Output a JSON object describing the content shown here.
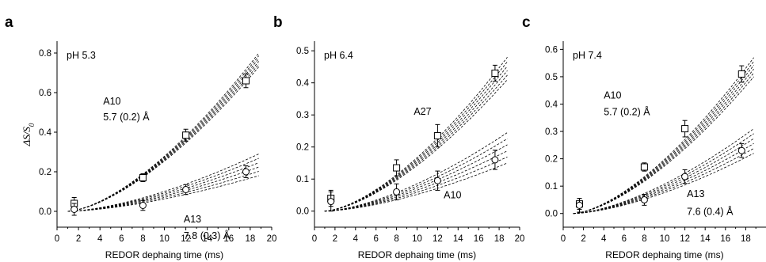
{
  "figure": {
    "ylabel_html": "ΔS/S0",
    "ylabel_main": "ΔS/",
    "ylabel_S": "S",
    "ylabel_sub": "0"
  },
  "chart_data": [
    {
      "type": "scatter",
      "panel_label": "a",
      "condition": "pH 5.3",
      "xlabel": "REDOR dephaing time (ms)",
      "ylabel": "ΔS/S0",
      "xlim": [
        0,
        20
      ],
      "ylim": [
        -0.08,
        0.86
      ],
      "xticks": [
        0,
        2,
        4,
        6,
        8,
        10,
        12,
        14,
        16,
        18,
        20
      ],
      "yticks": [
        0.0,
        0.2,
        0.4,
        0.6,
        0.8
      ],
      "ytick_labels": [
        "0.0",
        "0.2",
        "0.4",
        "0.6",
        "0.8"
      ],
      "grid": false,
      "series": [
        {
          "name": "A10",
          "marker": "square",
          "distance_label": "5.7 (0.2) Å",
          "x": [
            1.6,
            8.0,
            12.0,
            17.6
          ],
          "y": [
            0.04,
            0.17,
            0.385,
            0.66
          ],
          "err": [
            0.03,
            0.02,
            0.03,
            0.035
          ],
          "fit_ends": [
            0.73,
            0.8
          ]
        },
        {
          "name": "A13",
          "marker": "circle",
          "distance_label": "7.8 (0.3) Å",
          "x": [
            1.6,
            8.0,
            12.0,
            17.6
          ],
          "y": [
            0.01,
            0.03,
            0.11,
            0.2
          ],
          "err": [
            0.03,
            0.025,
            0.025,
            0.03
          ],
          "fit_ends": [
            0.18,
            0.29
          ]
        }
      ],
      "annotations": [
        "A10",
        "5.7 (0.2) Å",
        "A13",
        "7.8 (0.3) Å"
      ]
    },
    {
      "type": "scatter",
      "panel_label": "b",
      "condition": "pH 6.4",
      "xlabel": "REDOR dephaing time (ms)",
      "ylabel": "",
      "xlim": [
        0,
        20
      ],
      "ylim": [
        -0.05,
        0.53
      ],
      "xticks": [
        0,
        2,
        4,
        6,
        8,
        10,
        12,
        14,
        16,
        18,
        20
      ],
      "yticks": [
        0.0,
        0.1,
        0.2,
        0.3,
        0.4,
        0.5
      ],
      "ytick_labels": [
        "0.0",
        "0.1",
        "0.2",
        "0.3",
        "0.4",
        "0.5"
      ],
      "grid": false,
      "series": [
        {
          "name": "A27",
          "marker": "square",
          "x": [
            1.6,
            8.0,
            12.0,
            17.6
          ],
          "y": [
            0.04,
            0.135,
            0.235,
            0.43
          ],
          "err": [
            0.025,
            0.025,
            0.035,
            0.025
          ],
          "fit_ends": [
            0.41,
            0.48
          ]
        },
        {
          "name": "A10",
          "marker": "circle",
          "x": [
            1.6,
            8.0,
            12.0,
            17.6
          ],
          "y": [
            0.03,
            0.06,
            0.095,
            0.16
          ],
          "err": [
            0.03,
            0.025,
            0.03,
            0.03
          ],
          "fit_ends": [
            0.15,
            0.245
          ]
        }
      ],
      "annotations": [
        "A27",
        "A10"
      ]
    },
    {
      "type": "scatter",
      "panel_label": "c",
      "condition": "pH 7.4",
      "xlabel": "REDOR dephaing time (ms)",
      "ylabel": "",
      "xlim": [
        0,
        20
      ],
      "ylim": [
        -0.05,
        0.63
      ],
      "xticks": [
        0,
        2,
        4,
        6,
        8,
        10,
        12,
        14,
        16,
        18,
        20
      ],
      "yticks": [
        0.0,
        0.1,
        0.2,
        0.3,
        0.4,
        0.5,
        0.6
      ],
      "ytick_labels": [
        "0.0",
        "0.1",
        "0.2",
        "0.3",
        "0.4",
        "0.5",
        "0.6"
      ],
      "grid": false,
      "series": [
        {
          "name": "A10",
          "marker": "square",
          "distance_label": "5.7 (0.2) Å",
          "x": [
            1.6,
            8.0,
            12.0,
            17.6
          ],
          "y": [
            0.035,
            0.17,
            0.31,
            0.51
          ],
          "err": [
            0.02,
            0.015,
            0.03,
            0.03
          ],
          "fit_ends": [
            0.5,
            0.57
          ]
        },
        {
          "name": "A13",
          "marker": "circle",
          "distance_label": "7.6 (0.4) Å",
          "x": [
            1.6,
            8.0,
            12.0,
            17.6
          ],
          "y": [
            0.03,
            0.05,
            0.135,
            0.23
          ],
          "err": [
            0.025,
            0.02,
            0.025,
            0.025
          ],
          "fit_ends": [
            0.22,
            0.31
          ]
        }
      ],
      "annotations": [
        "A10",
        "5.7 (0.2) Å",
        "A13",
        "7.6 (0.4) Å"
      ]
    }
  ]
}
